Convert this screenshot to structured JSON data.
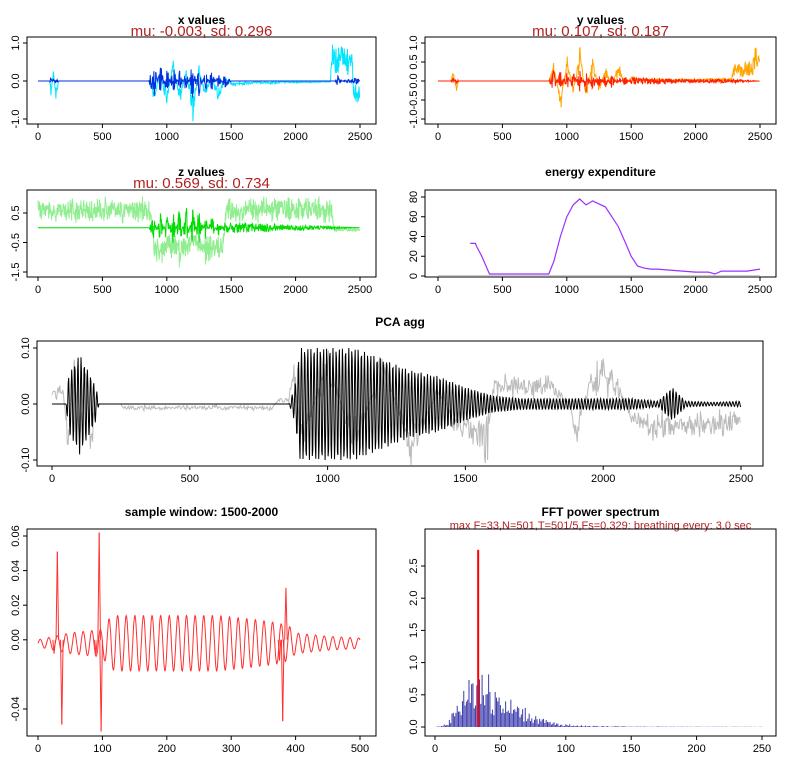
{
  "chart_data": [
    {
      "id": "x",
      "type": "line",
      "title": "x values",
      "subtitle": "mu: -0.003, sd: 0.296",
      "xlabel": "",
      "ylabel": "",
      "xlim": [
        0,
        2500
      ],
      "ylim": [
        -1,
        1
      ],
      "xticks": [
        0,
        500,
        1000,
        1500,
        2000,
        2500
      ],
      "yticks": [
        -1.0,
        0.0,
        1.0
      ],
      "yticklabels": [
        "-1.0",
        "0.0",
        "1.0"
      ],
      "grid": false,
      "series": [
        {
          "color": "#00e5ff",
          "style": "raw",
          "x": [
            0,
            90,
            100,
            120,
            140,
            160,
            860,
            900,
            950,
            1000,
            1050,
            1100,
            1150,
            1200,
            1250,
            1300,
            1350,
            1400,
            1450,
            1500,
            1600,
            1700,
            1800,
            1900,
            2000,
            2100,
            2200,
            2270,
            2280,
            2300,
            2400,
            2440,
            2450,
            2480,
            2500
          ],
          "y": [
            0,
            0,
            -0.4,
            0.3,
            -0.5,
            0,
            0,
            -0.5,
            0.2,
            -0.7,
            0.6,
            -0.6,
            0.3,
            -1.0,
            0.4,
            -0.5,
            0.2,
            -0.7,
            0.1,
            -0.1,
            -0.1,
            -0.05,
            -0.08,
            -0.04,
            -0.05,
            -0.04,
            -0.03,
            -0.03,
            0.9,
            0.9,
            0.9,
            0.9,
            -0.6,
            -0.6,
            -0.6
          ]
        },
        {
          "color": "#0033dd",
          "style": "burst",
          "x": [
            0,
            90,
            100,
            120,
            140,
            160,
            860,
            900,
            950,
            1000,
            1050,
            1100,
            1150,
            1200,
            1250,
            1300,
            1350,
            1400,
            1450,
            1500,
            2300,
            2330,
            2360,
            2480,
            2500
          ],
          "y": [
            0,
            0,
            0.1,
            -0.1,
            0.1,
            0,
            0,
            0.6,
            -0.5,
            0.4,
            -0.4,
            0.3,
            -0.3,
            0.5,
            -0.4,
            0.3,
            -0.3,
            0.2,
            -0.2,
            0,
            0,
            0.15,
            0,
            0.1,
            0
          ]
        }
      ]
    },
    {
      "id": "y",
      "type": "line",
      "title": "y values",
      "subtitle": "mu: 0.107, sd: 0.187",
      "xlabel": "",
      "ylabel": "",
      "xlim": [
        0,
        2500
      ],
      "ylim": [
        -1,
        1
      ],
      "xticks": [
        0,
        500,
        1000,
        1500,
        2000,
        2500
      ],
      "yticks": [
        -1.0,
        -0.5,
        0.0,
        0.5,
        1.0
      ],
      "yticklabels": [
        "-1.0",
        "-0.5",
        "0.0",
        "0.5",
        "1.0"
      ],
      "grid": false,
      "series": [
        {
          "color": "#ffa500",
          "style": "raw",
          "x": [
            0,
            100,
            120,
            140,
            160,
            860,
            900,
            950,
            1000,
            1050,
            1100,
            1150,
            1200,
            1250,
            1300,
            1350,
            1400,
            1450,
            1500,
            1600,
            1700,
            1800,
            1900,
            2000,
            2100,
            2200,
            2280,
            2300,
            2400,
            2440,
            2450,
            2480,
            2500
          ],
          "y": [
            0,
            0,
            0.3,
            -0.3,
            0,
            0,
            0.5,
            -0.8,
            0.7,
            -0.4,
            0.9,
            -0.5,
            0.6,
            -0.3,
            0.4,
            -0.2,
            0.5,
            -0.1,
            0.1,
            0.05,
            0.05,
            0.04,
            0.05,
            0.04,
            0.06,
            0.06,
            0.07,
            0.45,
            0.45,
            0.45,
            1.0,
            0.7,
            0.75
          ]
        },
        {
          "color": "#ff2200",
          "style": "burst",
          "x": [
            0,
            100,
            120,
            140,
            160,
            860,
            900,
            950,
            1000,
            1050,
            1100,
            1150,
            1200,
            1250,
            1300,
            1350,
            1400,
            1450,
            1500,
            1600,
            1700,
            1900,
            2300,
            2500
          ],
          "y": [
            0,
            0,
            0.1,
            -0.1,
            0,
            0,
            0.3,
            -0.3,
            0.25,
            -0.25,
            0.3,
            -0.3,
            0.25,
            -0.2,
            0.2,
            -0.2,
            0.15,
            -0.15,
            0.1,
            0.1,
            0.08,
            0.05,
            0.05,
            0
          ]
        }
      ]
    },
    {
      "id": "z",
      "type": "line",
      "title": "z values",
      "subtitle": "mu: 0.569, sd: 0.734",
      "xlabel": "",
      "ylabel": "",
      "xlim": [
        0,
        2500
      ],
      "ylim": [
        -1.5,
        1.0
      ],
      "xticks": [
        0,
        500,
        1000,
        1500,
        2000,
        2500
      ],
      "yticks": [
        -1.5,
        -0.5,
        0.5
      ],
      "yticklabels": [
        "-1.5",
        "-0.5",
        "0.5"
      ],
      "grid": false,
      "series": [
        {
          "color": "#90ee90",
          "style": "raw",
          "x": [
            0,
            90,
            100,
            120,
            140,
            150,
            860,
            880,
            900,
            950,
            1000,
            1100,
            1200,
            1300,
            1400,
            1440,
            1460,
            2280,
            2300,
            2500
          ],
          "y": [
            0.9,
            0.9,
            0.6,
            0.9,
            0.5,
            0.9,
            0.9,
            0.4,
            -0.9,
            -1.3,
            -0.8,
            -1.2,
            -0.6,
            -1.1,
            -1.0,
            -1.0,
            0.9,
            0.9,
            -0.1,
            -0.1
          ]
        },
        {
          "color": "#00dd00",
          "style": "burst",
          "x": [
            0,
            90,
            860,
            900,
            950,
            1000,
            1050,
            1100,
            1150,
            1200,
            1250,
            1300,
            1350,
            1400,
            1450,
            2500
          ],
          "y": [
            0,
            0,
            0,
            0.4,
            -0.5,
            0.5,
            -0.6,
            0.8,
            -0.9,
            0.7,
            -0.7,
            0.4,
            -0.4,
            0.3,
            -0.2,
            0
          ]
        }
      ]
    },
    {
      "id": "energy",
      "type": "line",
      "title": "energy expenditure",
      "xlabel": "",
      "ylabel": "",
      "xlim": [
        0,
        2500
      ],
      "ylim": [
        0,
        80
      ],
      "xticks": [
        0,
        500,
        1000,
        1500,
        2000,
        2500
      ],
      "yticks": [
        0,
        20,
        40,
        60,
        80
      ],
      "yticklabels": [
        "0",
        "20",
        "40",
        "60",
        "80"
      ],
      "grid": false,
      "series": [
        {
          "color": "#9b30ff",
          "style": "plain",
          "x": [
            250,
            290,
            300,
            340,
            390,
            400,
            500,
            600,
            700,
            800,
            860,
            900,
            950,
            1000,
            1050,
            1100,
            1150,
            1200,
            1250,
            1300,
            1350,
            1400,
            1450,
            1500,
            1550,
            1600,
            1650,
            1700,
            1800,
            1900,
            2000,
            2100,
            2150,
            2200,
            2300,
            2400,
            2500
          ],
          "y": [
            33,
            33,
            30,
            20,
            5,
            2,
            2,
            2,
            2,
            2,
            2,
            15,
            40,
            60,
            72,
            78,
            72,
            76,
            73,
            70,
            60,
            50,
            35,
            20,
            10,
            8,
            7,
            7,
            6,
            5,
            4,
            4,
            2,
            5,
            5,
            5,
            7
          ]
        },
        {
          "color": "#aaaaaa",
          "style": "plain",
          "x": [
            0,
            2500
          ],
          "y": [
            0,
            0
          ]
        }
      ]
    },
    {
      "id": "pca",
      "type": "line",
      "title": "PCA agg",
      "xlabel": "",
      "ylabel": "",
      "xlim": [
        0,
        2500
      ],
      "ylim": [
        -0.1,
        0.1
      ],
      "xticks": [
        0,
        500,
        1000,
        1500,
        2000,
        2500
      ],
      "yticks": [
        -0.1,
        0.0,
        0.1
      ],
      "yticklabels": [
        "-0.10",
        "0.00",
        "0.10"
      ],
      "grid": false,
      "series": [
        {
          "color": "#bbbbbb",
          "style": "raw",
          "x": [
            0,
            40,
            60,
            80,
            100,
            120,
            140,
            160,
            250,
            260,
            500,
            800,
            820,
            860,
            880,
            900,
            1000,
            1100,
            1200,
            1300,
            1400,
            1420,
            1450,
            1550,
            1580,
            1600,
            1650,
            1700,
            1800,
            1880,
            1900,
            1950,
            2000,
            2050,
            2100,
            2150,
            2200,
            2250,
            2300,
            2400,
            2500
          ],
          "y": [
            0.03,
            0.03,
            -0.1,
            0.1,
            -0.1,
            0.1,
            -0.1,
            0.0,
            0.0,
            -0.01,
            -0.01,
            -0.01,
            0.01,
            0.01,
            0.1,
            -0.1,
            0.1,
            -0.1,
            0.1,
            -0.1,
            0.03,
            0.03,
            -0.05,
            -0.08,
            -0.1,
            0.05,
            0.05,
            0.05,
            0.05,
            0.0,
            -0.1,
            0.06,
            0.07,
            0.05,
            -0.03,
            -0.05,
            -0.06,
            -0.05,
            -0.05,
            -0.05,
            -0.05
          ]
        },
        {
          "color": "#000000",
          "style": "osc",
          "x": [
            0,
            50,
            60,
            100,
            160,
            170,
            860,
            880,
            900,
            1000,
            1100,
            1200,
            1300,
            1400,
            1500,
            1600,
            1700,
            1800,
            1900,
            2000,
            2100,
            2200,
            2250,
            2300,
            2400,
            2500
          ],
          "y": [
            0.0,
            0.0,
            0.05,
            0.09,
            0.03,
            0.0,
            0.0,
            0.03,
            0.1,
            0.1,
            0.1,
            0.08,
            0.06,
            0.05,
            0.03,
            0.015,
            0.01,
            0.01,
            0.01,
            0.01,
            0.01,
            0.005,
            0.03,
            0.005,
            0.003,
            0.005
          ]
        }
      ]
    },
    {
      "id": "window",
      "type": "line",
      "title": "sample window: 1500-2000",
      "xlabel": "",
      "ylabel": "",
      "xlim": [
        0,
        500
      ],
      "ylim": [
        -0.05,
        0.06
      ],
      "xticks": [
        0,
        100,
        200,
        300,
        400,
        500
      ],
      "yticks": [
        -0.04,
        0.0,
        0.02,
        0.04,
        0.06
      ],
      "yticklabels": [
        "-0.04",
        "0.00",
        "0.02",
        "0.04",
        "0.06"
      ],
      "grid": false,
      "spikes": [
        {
          "x": 25,
          "y": -0.008
        },
        {
          "x": 30,
          "y": 0.051
        },
        {
          "x": 37,
          "y": -0.049
        },
        {
          "x": 90,
          "y": -0.008
        },
        {
          "x": 95,
          "y": 0.062
        },
        {
          "x": 98,
          "y": -0.053
        },
        {
          "x": 375,
          "y": -0.012
        },
        {
          "x": 385,
          "y": 0.03
        },
        {
          "x": 380,
          "y": -0.047
        }
      ],
      "series": [
        {
          "color": "#ff3030",
          "style": "wave",
          "x": [
            0,
            50,
            100,
            110,
            120,
            200,
            280,
            330,
            370,
            390,
            400,
            450,
            500
          ],
          "y": [
            0.002,
            0.006,
            0.008,
            0.014,
            0.016,
            0.016,
            0.016,
            0.014,
            0.012,
            0.01,
            0.006,
            0.004,
            0.003
          ]
        }
      ]
    },
    {
      "id": "fft",
      "type": "bar",
      "title": "FFT power spectrum",
      "subtitle": "max F=33,N=501,T=501/5,Fs=0.329: breathing every: 3.0 sec",
      "xlabel": "",
      "ylabel": "",
      "xlim": [
        0,
        250
      ],
      "ylim": [
        0,
        2.8
      ],
      "xticks": [
        0,
        50,
        100,
        150,
        200,
        250
      ],
      "yticks": [
        0.0,
        0.5,
        1.0,
        1.5,
        2.0,
        2.5
      ],
      "yticklabels": [
        "0.0",
        "0.5",
        "1.0",
        "1.5",
        "2.0",
        "2.5"
      ],
      "grid": false,
      "peak": {
        "x": 33,
        "y": 2.75,
        "color": "#ff0000"
      },
      "series": [
        {
          "color": "#3a3aaa",
          "style": "bars",
          "x": [
            0,
            5,
            10,
            15,
            20,
            25,
            28,
            30,
            32,
            35,
            38,
            40,
            45,
            50,
            55,
            60,
            65,
            70,
            75,
            80,
            90,
            100,
            110,
            120,
            150,
            200,
            250
          ],
          "y": [
            0,
            0.02,
            0.1,
            0.3,
            0.5,
            0.8,
            1.25,
            0.6,
            0.9,
            1.4,
            0.7,
            0.9,
            0.8,
            0.65,
            0.5,
            0.4,
            0.35,
            0.3,
            0.25,
            0.15,
            0.08,
            0.05,
            0.03,
            0.02,
            0.01,
            0.005,
            0.005
          ]
        }
      ]
    }
  ]
}
